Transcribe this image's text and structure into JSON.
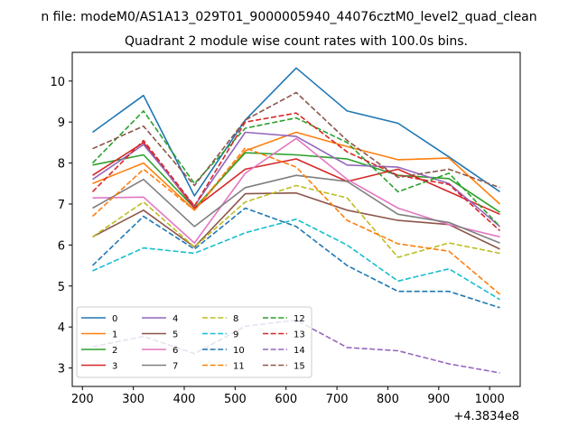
{
  "figure": {
    "suptitle": "n file: modeM0/AS1A13_029T01_9000005940_44076cztM0_level2_quad_clean",
    "title": "Quadrant 2 module wise count rates with 100.0s bins.",
    "x_offset_label": "+4.3834e8"
  },
  "chart_data": {
    "type": "line",
    "title": "Quadrant 2 module wise count rates with 100.0s bins.",
    "xlabel": "",
    "ylabel": "",
    "x_offset": "+4.3834e8",
    "xlim": [
      180,
      1060
    ],
    "ylim": [
      2.55,
      10.7
    ],
    "xticks": [
      200,
      300,
      400,
      500,
      600,
      700,
      800,
      900,
      1000
    ],
    "yticks": [
      3,
      4,
      5,
      6,
      7,
      8,
      9,
      10
    ],
    "x": [
      220,
      320,
      420,
      520,
      620,
      720,
      820,
      920,
      1020
    ],
    "legend": {
      "location": "lower-left",
      "columns": 4
    },
    "series": [
      {
        "name": "0",
        "color": "#1f77b4",
        "style": "solid",
        "values": [
          8.75,
          9.65,
          7.2,
          9.05,
          10.32,
          9.27,
          8.97,
          8.15,
          7.3
        ]
      },
      {
        "name": "1",
        "color": "#ff7f0e",
        "style": "solid",
        "values": [
          7.5,
          8.0,
          6.85,
          8.3,
          8.75,
          8.4,
          8.08,
          8.12,
          7.0
        ]
      },
      {
        "name": "2",
        "color": "#2ca02c",
        "style": "solid",
        "values": [
          7.95,
          8.2,
          6.9,
          8.25,
          8.2,
          8.1,
          7.7,
          7.62,
          6.8
        ]
      },
      {
        "name": "3",
        "color": "#d62728",
        "style": "solid",
        "values": [
          7.7,
          8.5,
          6.9,
          7.85,
          8.1,
          7.55,
          7.85,
          7.3,
          6.75
        ]
      },
      {
        "name": "4",
        "color": "#9467bd",
        "style": "solid",
        "values": [
          7.6,
          8.45,
          6.95,
          8.75,
          8.65,
          7.95,
          7.9,
          7.5,
          6.45
        ]
      },
      {
        "name": "5",
        "color": "#8c564b",
        "style": "solid",
        "values": [
          6.2,
          6.85,
          5.95,
          7.25,
          7.27,
          6.85,
          6.6,
          6.5,
          5.9
        ]
      },
      {
        "name": "6",
        "color": "#e377c2",
        "style": "solid",
        "values": [
          7.15,
          7.17,
          6.05,
          7.75,
          8.6,
          7.6,
          6.9,
          6.5,
          6.2
        ]
      },
      {
        "name": "7",
        "color": "#7f7f7f",
        "style": "solid",
        "values": [
          6.9,
          7.6,
          6.45,
          7.4,
          7.7,
          7.55,
          6.75,
          6.55,
          6.05
        ]
      },
      {
        "name": "8",
        "color": "#bcbd22",
        "style": "dashed",
        "values": [
          6.2,
          7.05,
          5.95,
          7.05,
          7.45,
          7.15,
          5.7,
          6.05,
          5.8
        ]
      },
      {
        "name": "9",
        "color": "#17becf",
        "style": "dashed",
        "values": [
          5.37,
          5.93,
          5.8,
          6.3,
          6.63,
          6.0,
          5.12,
          5.42,
          4.67
        ]
      },
      {
        "name": "10",
        "color": "#1f77b4",
        "style": "dashed",
        "values": [
          5.5,
          6.7,
          5.9,
          6.9,
          6.45,
          5.5,
          4.87,
          4.87,
          4.47
        ]
      },
      {
        "name": "11",
        "color": "#ff7f0e",
        "style": "dashed",
        "values": [
          6.7,
          7.85,
          6.85,
          8.37,
          7.9,
          6.6,
          6.03,
          5.85,
          4.8
        ]
      },
      {
        "name": "12",
        "color": "#2ca02c",
        "style": "dashed",
        "values": [
          8.0,
          9.27,
          7.5,
          8.85,
          9.1,
          8.5,
          7.3,
          7.75,
          6.45
        ]
      },
      {
        "name": "13",
        "color": "#d62728",
        "style": "dashed",
        "values": [
          7.3,
          8.55,
          6.95,
          9.0,
          9.22,
          8.27,
          7.7,
          7.48,
          6.35
        ]
      },
      {
        "name": "14",
        "color": "#9467bd",
        "style": "dashed",
        "values": [
          3.52,
          3.77,
          3.35,
          4.02,
          4.17,
          3.5,
          3.42,
          3.1,
          2.88
        ]
      },
      {
        "name": "15",
        "color": "#8c564b",
        "style": "dashed",
        "values": [
          8.35,
          8.9,
          7.45,
          9.05,
          9.72,
          8.55,
          7.65,
          7.85,
          7.4
        ]
      }
    ]
  }
}
